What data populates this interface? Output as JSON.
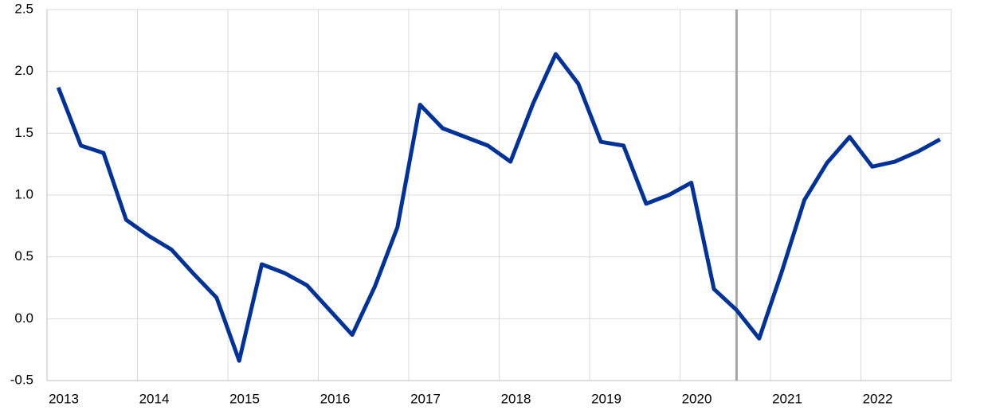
{
  "chart_data": {
    "type": "line",
    "x": [
      2013.125,
      2013.375,
      2013.625,
      2013.875,
      2014.125,
      2014.375,
      2014.625,
      2014.875,
      2015.125,
      2015.375,
      2015.625,
      2015.875,
      2016.125,
      2016.375,
      2016.625,
      2016.875,
      2017.125,
      2017.375,
      2017.625,
      2017.875,
      2018.125,
      2018.375,
      2018.625,
      2018.875,
      2019.125,
      2019.375,
      2019.625,
      2019.875,
      2020.125,
      2020.375,
      2020.625,
      2020.875,
      2021.125,
      2021.375,
      2021.625,
      2021.875,
      2022.125,
      2022.375,
      2022.625,
      2022.875
    ],
    "series": [
      {
        "color": "#003299",
        "values": [
          1.87,
          1.4,
          1.34,
          0.8,
          0.67,
          0.56,
          0.36,
          0.17,
          -0.34,
          0.44,
          0.37,
          0.27,
          0.07,
          -0.13,
          0.26,
          0.74,
          1.73,
          1.54,
          1.47,
          1.4,
          1.27,
          1.74,
          2.14,
          1.9,
          1.43,
          1.4,
          0.93,
          1.0,
          1.1,
          0.24,
          0.07,
          -0.16,
          0.38,
          0.96,
          1.26,
          1.47,
          1.23,
          1.27,
          1.35,
          1.45
        ]
      }
    ],
    "xlim": [
      2013,
      2023
    ],
    "xticks": [
      2013,
      2014,
      2015,
      2016,
      2017,
      2018,
      2019,
      2020,
      2021,
      2022
    ],
    "ylim": [
      -0.5,
      2.5
    ],
    "yticks": [
      2.5,
      {
        "value": 2,
        "label": "2.0"
      },
      1.5,
      {
        "value": 1,
        "label": "1.0"
      },
      0.5,
      {
        "value": 0,
        "label": "0.0"
      },
      -0.5
    ],
    "grid": true,
    "vline": {
      "x": 2020.625,
      "color": "#a6a6a6"
    }
  }
}
